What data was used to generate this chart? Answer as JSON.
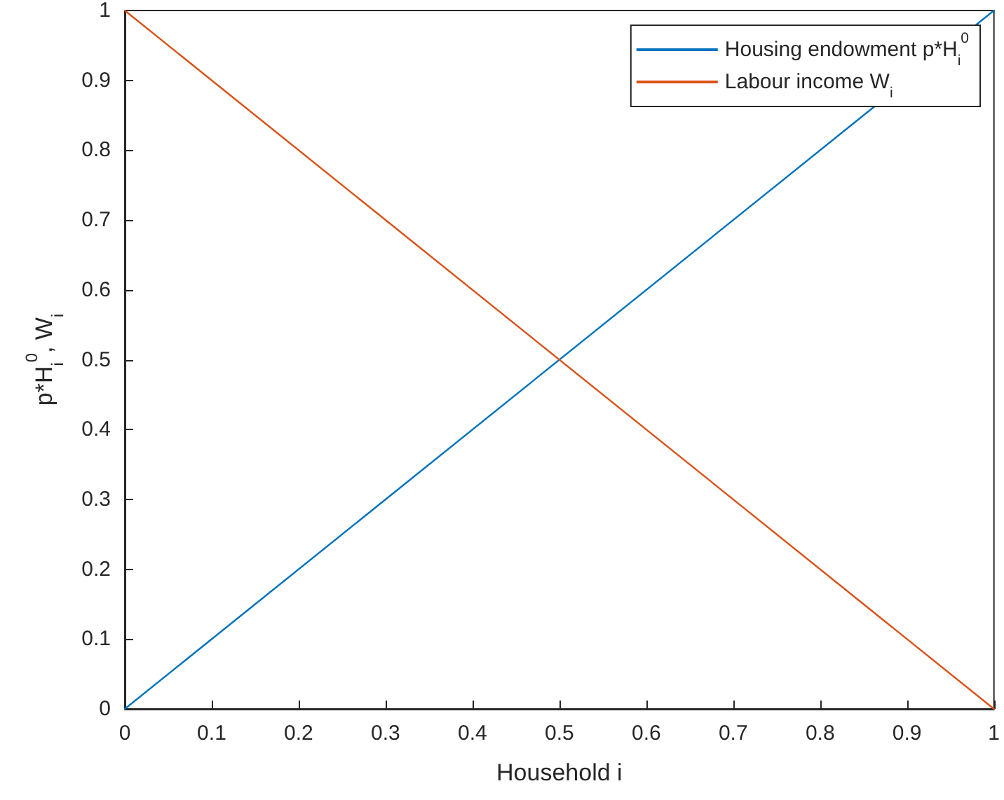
{
  "chart_data": {
    "type": "line",
    "xlabel": "Household i",
    "ylabel": "p*H$_{i}$$^{0}$, W$_{i}$",
    "x": [
      0,
      1
    ],
    "series": [
      {
        "name": "Housing endowment p*H$_{i}$$^{0}$",
        "color": "#0072bd",
        "values": [
          0,
          1
        ]
      },
      {
        "name": "Labour income W$_{i}$",
        "color": "#d95319",
        "values": [
          1,
          0
        ]
      }
    ],
    "xlim": [
      0,
      1
    ],
    "xticks": [
      0,
      0.1,
      0.2,
      0.3,
      0.4,
      0.5,
      0.6,
      0.7,
      0.8,
      0.9,
      1
    ],
    "ylim": [
      0,
      1
    ],
    "yticks": [
      0,
      0.1,
      0.2,
      0.3,
      0.4,
      0.5,
      0.6,
      0.7,
      0.8,
      0.9,
      1
    ],
    "grid": false,
    "legend": "top right",
    "marker": "none",
    "line_style": "solid"
  }
}
